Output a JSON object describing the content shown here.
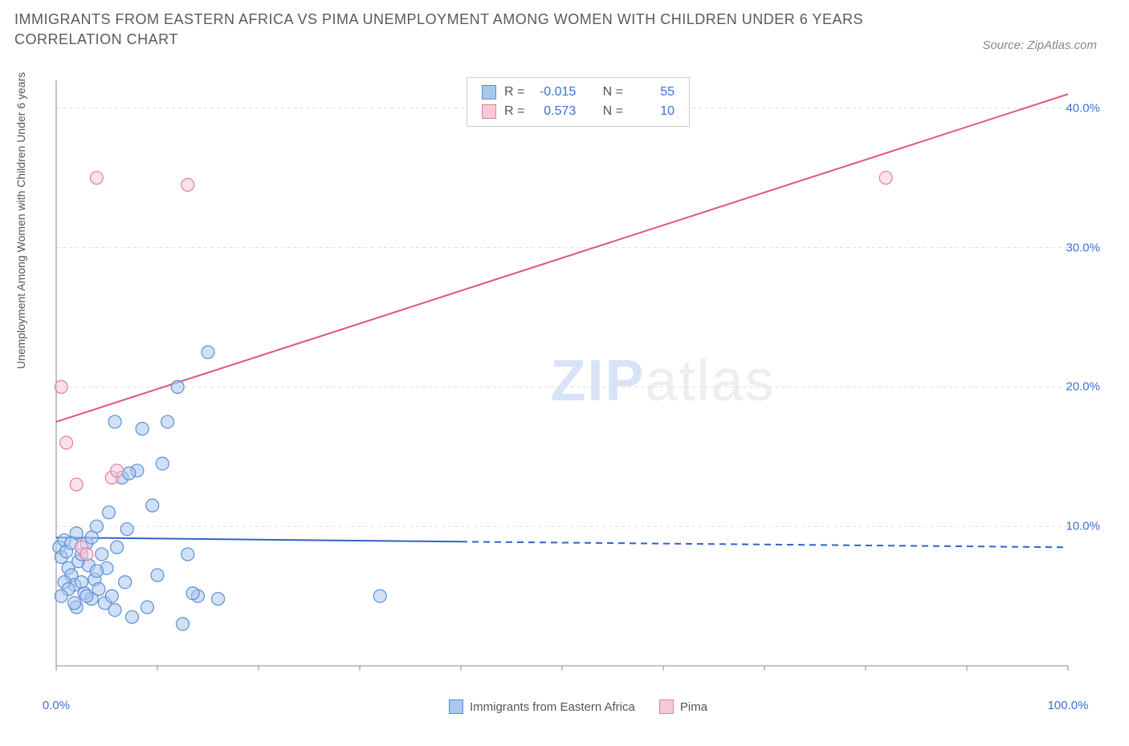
{
  "title": "IMMIGRANTS FROM EASTERN AFRICA VS PIMA UNEMPLOYMENT AMONG WOMEN WITH CHILDREN UNDER 6 YEARS CORRELATION CHART",
  "source_text": "Source: ZipAtlas.com",
  "watermark_zip": "ZIP",
  "watermark_atlas": "atlas",
  "y_axis_label": "Unemployment Among Women with Children Under 6 years",
  "chart": {
    "type": "scatter",
    "background_color": "#ffffff",
    "grid_color": "#dddddd",
    "axis_color": "#888888",
    "tick_label_color": "#3b6fd6",
    "axis_label_color": "#555555",
    "title_color": "#5a5a5a",
    "title_fontsize": 18,
    "tick_fontsize": 15,
    "axis_label_fontsize": 14,
    "xlim": [
      0,
      100
    ],
    "ylim": [
      0,
      42
    ],
    "x_ticks": [
      {
        "pos": 0,
        "label": "0.0%"
      },
      {
        "pos": 100,
        "label": "100.0%"
      }
    ],
    "x_minor_ticks": [
      0,
      10,
      20,
      30,
      40,
      50,
      60,
      70,
      80,
      90,
      100
    ],
    "y_ticks": [
      {
        "pos": 10,
        "label": "10.0%"
      },
      {
        "pos": 20,
        "label": "20.0%"
      },
      {
        "pos": 30,
        "label": "30.0%"
      },
      {
        "pos": 40,
        "label": "40.0%"
      }
    ],
    "marker_radius": 8,
    "marker_opacity": 0.55,
    "series": [
      {
        "name": "Immigrants from Eastern Africa",
        "fill_color": "#a9c7ef",
        "stroke_color": "#5b8fd6",
        "R": "-0.015",
        "N": "55",
        "trend": {
          "solid": {
            "x1": 0,
            "y1": 9.2,
            "x2": 40,
            "y2": 8.9
          },
          "dashed": {
            "x1": 40,
            "y1": 8.9,
            "x2": 100,
            "y2": 8.5
          },
          "color": "#2f64c9",
          "width": 2
        },
        "points": [
          [
            0.3,
            8.5
          ],
          [
            0.5,
            7.8
          ],
          [
            0.8,
            9.0
          ],
          [
            1.0,
            8.2
          ],
          [
            1.2,
            7.0
          ],
          [
            1.5,
            6.5
          ],
          [
            1.8,
            5.8
          ],
          [
            2.0,
            9.5
          ],
          [
            2.2,
            7.5
          ],
          [
            2.5,
            6.0
          ],
          [
            2.8,
            5.2
          ],
          [
            3.0,
            8.8
          ],
          [
            3.2,
            7.2
          ],
          [
            3.5,
            4.8
          ],
          [
            3.8,
            6.2
          ],
          [
            4.0,
            10.0
          ],
          [
            4.2,
            5.5
          ],
          [
            4.5,
            8.0
          ],
          [
            4.8,
            4.5
          ],
          [
            5.0,
            7.0
          ],
          [
            5.2,
            11.0
          ],
          [
            5.5,
            5.0
          ],
          [
            5.8,
            4.0
          ],
          [
            6.0,
            8.5
          ],
          [
            6.5,
            13.5
          ],
          [
            6.8,
            6.0
          ],
          [
            7.0,
            9.8
          ],
          [
            7.5,
            3.5
          ],
          [
            8.0,
            14.0
          ],
          [
            8.5,
            17.0
          ],
          [
            9.0,
            4.2
          ],
          [
            9.5,
            11.5
          ],
          [
            10.0,
            6.5
          ],
          [
            10.5,
            14.5
          ],
          [
            11.0,
            17.5
          ],
          [
            12.0,
            20.0
          ],
          [
            12.5,
            3.0
          ],
          [
            13.0,
            8.0
          ],
          [
            14.0,
            5.0
          ],
          [
            15.0,
            22.5
          ],
          [
            16.0,
            4.8
          ],
          [
            2.0,
            4.2
          ],
          [
            3.0,
            5.0
          ],
          [
            4.0,
            6.8
          ],
          [
            1.5,
            8.8
          ],
          [
            0.8,
            6.0
          ],
          [
            1.2,
            5.5
          ],
          [
            2.5,
            8.0
          ],
          [
            3.5,
            9.2
          ],
          [
            5.8,
            17.5
          ],
          [
            7.2,
            13.8
          ],
          [
            0.5,
            5.0
          ],
          [
            1.8,
            4.5
          ],
          [
            32.0,
            5.0
          ],
          [
            13.5,
            5.2
          ]
        ]
      },
      {
        "name": "Pima",
        "fill_color": "#f7c9d6",
        "stroke_color": "#e07fa0",
        "R": "0.573",
        "N": "10",
        "trend": {
          "solid": {
            "x1": 0,
            "y1": 17.5,
            "x2": 100,
            "y2": 41.0
          },
          "color": "#e0557f",
          "width": 2
        },
        "points": [
          [
            0.5,
            20.0
          ],
          [
            1.0,
            16.0
          ],
          [
            2.0,
            13.0
          ],
          [
            4.0,
            35.0
          ],
          [
            5.5,
            13.5
          ],
          [
            6.0,
            14.0
          ],
          [
            13.0,
            34.5
          ],
          [
            82.0,
            35.0
          ],
          [
            2.5,
            8.5
          ],
          [
            3.0,
            8.0
          ]
        ]
      }
    ]
  },
  "legend_top": {
    "r_label": "R =",
    "n_label": "N ="
  },
  "legend_bottom": [
    {
      "swatch_fill": "#a9c7ef",
      "swatch_stroke": "#5b8fd6",
      "label": "Immigrants from Eastern Africa"
    },
    {
      "swatch_fill": "#f7c9d6",
      "swatch_stroke": "#e07fa0",
      "label": "Pima"
    }
  ]
}
